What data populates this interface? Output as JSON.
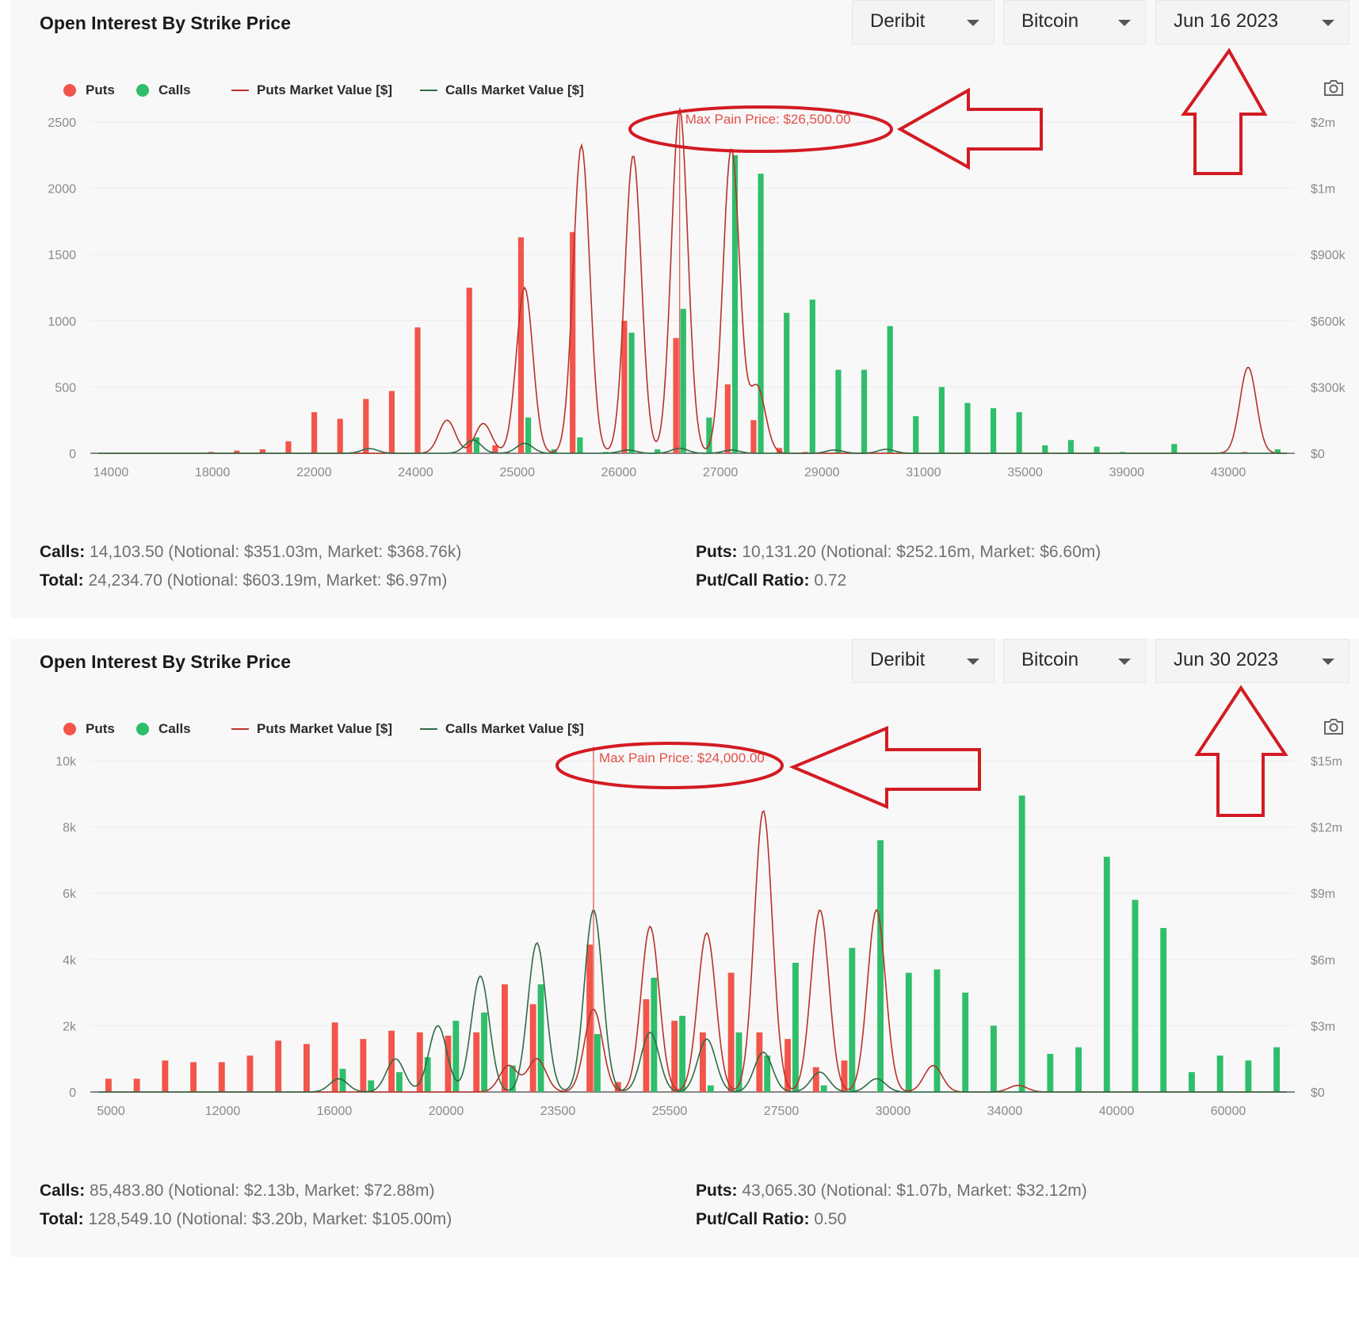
{
  "colors": {
    "puts": "#f2554a",
    "calls": "#2fbe6a",
    "puts_line": "#b83228",
    "calls_line": "#2d6b45",
    "annotation": "#d31b23",
    "maxpain": "#e2514a"
  },
  "panels": [
    {
      "title": "Open Interest By Strike Price",
      "controls": {
        "exchange": "Deribit",
        "asset": "Bitcoin",
        "expiry": "Jun 16 2023"
      },
      "legend": {
        "puts": "Puts",
        "calls": "Calls",
        "puts_mv": "Puts Market Value [$]",
        "calls_mv": "Calls Market Value [$]"
      },
      "camera_icon": "camera-icon",
      "max_pain_label": "Max Pain Price: $26,500.00",
      "stats": {
        "calls_label": "Calls:",
        "calls_value": "14,103.50 (Notional: $351.03m, Market: $368.76k)",
        "puts_label": "Puts:",
        "puts_value": "10,131.20 (Notional: $252.16m, Market: $6.60m)",
        "total_label": "Total:",
        "total_value": "24,234.70 (Notional: $603.19m, Market: $6.97m)",
        "ratio_label": "Put/Call Ratio:",
        "ratio_value": "0.72"
      }
    },
    {
      "title": "Open Interest By Strike Price",
      "controls": {
        "exchange": "Deribit",
        "asset": "Bitcoin",
        "expiry": "Jun 30 2023"
      },
      "legend": {
        "puts": "Puts",
        "calls": "Calls",
        "puts_mv": "Puts Market Value [$]",
        "calls_mv": "Calls Market Value [$]"
      },
      "camera_icon": "camera-icon",
      "max_pain_label": "Max Pain Price: $24,000.00",
      "stats": {
        "calls_label": "Calls:",
        "calls_value": "85,483.80 (Notional: $2.13b, Market: $72.88m)",
        "puts_label": "Puts:",
        "puts_value": "43,065.30 (Notional: $1.07b, Market: $32.12m)",
        "total_label": "Total:",
        "total_value": "128,549.10 (Notional: $3.20b, Market: $105.00m)",
        "ratio_label": "Put/Call Ratio:",
        "ratio_value": "0.50"
      }
    }
  ],
  "chart_data": [
    {
      "type": "bar",
      "title": "Open Interest By Strike Price",
      "expiry": "Jun 16 2023",
      "x_tick_labels": [
        "14000",
        "18000",
        "22000",
        "24000",
        "25000",
        "26000",
        "27000",
        "29000",
        "31000",
        "35000",
        "39000",
        "43000"
      ],
      "y_left_ticks": [
        "0",
        "500",
        "1000",
        "1500",
        "2000",
        "2500"
      ],
      "y_right_ticks": [
        "$0",
        "$300k",
        "$600k",
        "$900k",
        "$1m",
        "$2m"
      ],
      "ylim": [
        0,
        2500
      ],
      "grid": "horizontal",
      "legend_position": "top-left",
      "max_pain_index": 22,
      "puts": [
        0,
        0,
        0,
        0,
        10,
        20,
        30,
        90,
        310,
        260,
        410,
        470,
        950,
        0,
        1250,
        60,
        1630,
        0,
        1670,
        0,
        1000,
        0,
        870,
        0,
        520,
        250,
        40,
        10,
        0,
        0,
        0,
        0,
        0,
        0,
        0,
        0,
        0,
        0,
        0,
        0,
        0,
        0,
        0,
        0,
        10,
        0
      ],
      "calls": [
        0,
        0,
        0,
        0,
        0,
        0,
        0,
        0,
        0,
        0,
        0,
        0,
        0,
        0,
        120,
        0,
        270,
        30,
        120,
        10,
        910,
        30,
        1090,
        270,
        2250,
        2110,
        1060,
        1160,
        630,
        630,
        960,
        280,
        500,
        380,
        340,
        310,
        60,
        100,
        50,
        10,
        0,
        70,
        0,
        0,
        0,
        30
      ],
      "puts_mv_peaks": [
        [
          16,
          0.05
        ],
        [
          13,
          0.1
        ],
        [
          14.4,
          0.09
        ],
        [
          16,
          0.45
        ],
        [
          18.2,
          0.93
        ],
        [
          20.2,
          0.9
        ],
        [
          22,
          1.04
        ],
        [
          24,
          0.92
        ],
        [
          25,
          0.2
        ],
        [
          44,
          0.26
        ]
      ],
      "calls_mv_peaks": [
        [
          10,
          0.014
        ],
        [
          14,
          0.04
        ],
        [
          16,
          0.03
        ],
        [
          20,
          0.01
        ],
        [
          22,
          0.015
        ],
        [
          24,
          0.01
        ],
        [
          28,
          0.01
        ],
        [
          30,
          0.012
        ]
      ],
      "y_right_max": "$2m"
    },
    {
      "type": "bar",
      "title": "Open Interest By Strike Price",
      "expiry": "Jun 30 2023",
      "x_tick_labels": [
        "5000",
        "12000",
        "16000",
        "20000",
        "23500",
        "25500",
        "27500",
        "30000",
        "34000",
        "40000",
        "60000"
      ],
      "y_left_ticks": [
        "0",
        "2k",
        "4k",
        "6k",
        "8k",
        "10k"
      ],
      "y_right_ticks": [
        "$0",
        "$3m",
        "$6m",
        "$9m",
        "$12m",
        "$15m"
      ],
      "ylim": [
        0,
        10000
      ],
      "grid": "horizontal",
      "legend_position": "top-left",
      "max_pain_index": 17,
      "puts": [
        400,
        400,
        950,
        900,
        900,
        1100,
        1550,
        1450,
        2100,
        1600,
        1850,
        1800,
        1700,
        1800,
        3250,
        2650,
        0,
        4450,
        300,
        2800,
        2150,
        1800,
        3600,
        1800,
        1600,
        750,
        950,
        0,
        0,
        0,
        0,
        0,
        0,
        0,
        0,
        0,
        0,
        0,
        0,
        0,
        0,
        0
      ],
      "calls": [
        0,
        0,
        0,
        0,
        0,
        0,
        0,
        0,
        700,
        350,
        600,
        1050,
        2150,
        2400,
        800,
        3250,
        0,
        1750,
        0,
        3450,
        2300,
        200,
        1800,
        1100,
        3900,
        200,
        4350,
        7600,
        3600,
        3700,
        3000,
        2000,
        8950,
        1150,
        1350,
        7100,
        5800,
        4950,
        600,
        1100,
        950,
        1350
      ],
      "puts_mv_peaks": [
        [
          14,
          0.08
        ],
        [
          15,
          0.1
        ],
        [
          17,
          0.25
        ],
        [
          19,
          0.5
        ],
        [
          21,
          0.48
        ],
        [
          23,
          0.85
        ],
        [
          25,
          0.55
        ],
        [
          27,
          0.55
        ],
        [
          29,
          0.08
        ],
        [
          32,
          0.02
        ]
      ],
      "calls_mv_peaks": [
        [
          8,
          0.04
        ],
        [
          10,
          0.1
        ],
        [
          11.5,
          0.2
        ],
        [
          13,
          0.35
        ],
        [
          15,
          0.45
        ],
        [
          17,
          0.55
        ],
        [
          19,
          0.18
        ],
        [
          21,
          0.16
        ],
        [
          23,
          0.12
        ],
        [
          25,
          0.06
        ],
        [
          27,
          0.04
        ]
      ],
      "y_right_max": "$15m"
    }
  ]
}
